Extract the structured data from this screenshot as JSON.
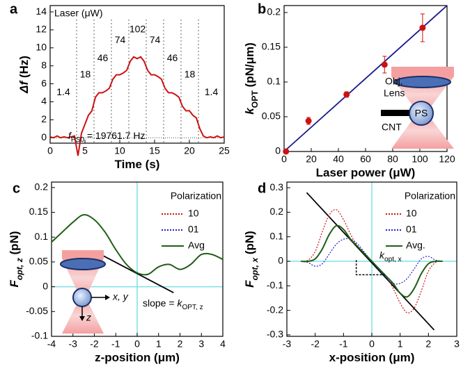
{
  "chart_data": [
    {
      "type": "line",
      "panel": "a",
      "ylabel": [
        {
          "text": "Δf",
          "italic": true
        },
        {
          "text": " (Hz)"
        }
      ],
      "xlabel": [
        {
          "text": "Time (s)"
        }
      ],
      "xlim": [
        0,
        25
      ],
      "ylim": [
        -0.6,
        14.7
      ],
      "xticks": [
        0,
        5,
        10,
        15,
        20,
        25
      ],
      "yticks": [
        0,
        2,
        4,
        6,
        8,
        10,
        12,
        14
      ],
      "x": [
        0,
        0.5,
        1,
        1.5,
        2,
        2.5,
        3,
        3.5,
        4,
        4.5,
        5,
        5.5,
        6,
        6.5,
        7,
        7.5,
        8,
        8.5,
        9,
        9.5,
        10,
        10.5,
        11,
        11.5,
        12,
        12.5,
        13,
        13.5,
        14,
        14.5,
        15,
        15.5,
        16,
        16.5,
        17,
        17.5,
        18,
        18.5,
        19,
        19.5,
        20,
        20.5,
        21,
        21.5,
        22,
        22.5,
        23,
        23.5,
        24,
        24.5,
        25
      ],
      "series": [
        {
          "color": "#cc1111",
          "values": [
            0.1,
            0,
            0.2,
            0,
            0.1,
            0,
            0.1,
            0.2,
            -2,
            0.5,
            1.5,
            2.5,
            3,
            4.5,
            5,
            5,
            5.2,
            5.5,
            6.5,
            7,
            7,
            7.2,
            7.5,
            8.5,
            9,
            8.8,
            9,
            8.5,
            7.5,
            7,
            7,
            6.8,
            6.5,
            5.5,
            5,
            5,
            4.8,
            4.5,
            3.5,
            3,
            3,
            2.5,
            2.2,
            1,
            0.2,
            0,
            0.1,
            0,
            0.2,
            0,
            0.1
          ]
        }
      ],
      "vlines": [
        3.8,
        6.3,
        8.8,
        11.3,
        13.8,
        16.3,
        18.8,
        21.3
      ],
      "legend_title": "Laser (μW)",
      "laser_labels": [
        "1.4",
        "18",
        "46",
        "74",
        "102",
        "74",
        "46",
        "18",
        "1.4"
      ],
      "annotation": [
        {
          "text": "f",
          "italic": true
        },
        {
          "text": "PS0",
          "sub": true
        },
        {
          "text": " = 19761.7 Hz"
        }
      ]
    },
    {
      "type": "errorbar",
      "panel": "b",
      "ylabel": [
        {
          "text": "k",
          "italic": true
        },
        {
          "text": "OPT",
          "sub": true
        },
        {
          "text": " (pN/μm)"
        }
      ],
      "xlabel": [
        {
          "text": "Laser power (μW)"
        }
      ],
      "xlim": [
        0,
        120
      ],
      "ylim": [
        0,
        0.21
      ],
      "xticks": [
        0,
        20,
        40,
        60,
        80,
        100,
        120
      ],
      "yticks": [
        0,
        0.05,
        0.1,
        0.15,
        0.2
      ],
      "x": [
        1.4,
        18,
        46,
        74,
        102
      ],
      "values": [
        0,
        0.044,
        0.082,
        0.125,
        0.178
      ],
      "errors": [
        0,
        0.005,
        0.004,
        0.012,
        0.02
      ],
      "color": "#cc1111",
      "fit_line": {
        "x": [
          0,
          120
        ],
        "y": [
          0,
          0.21
        ],
        "color": "#1a1a8c"
      },
      "inset_texts": [
        "Obj.",
        "Lens",
        "CNT",
        "PS"
      ]
    },
    {
      "type": "line",
      "panel": "c",
      "ylabel": [
        {
          "text": "F",
          "italic": true
        },
        {
          "text": "opt, z",
          "sub": true,
          "italic": true
        },
        {
          "text": " (pN)"
        }
      ],
      "xlabel": [
        {
          "text": "z-position (μm)"
        }
      ],
      "xlim": [
        -4,
        4
      ],
      "ylim": [
        -0.1,
        0.211
      ],
      "xticks": [
        -4,
        -3,
        -2,
        -1,
        0,
        1,
        2,
        3,
        4
      ],
      "yticks": [
        -0.1,
        -0.05,
        0,
        0.05,
        0.1,
        0.15,
        0.2
      ],
      "x": [
        -4,
        -3.5,
        -3,
        -2.5,
        -2,
        -1.5,
        -1,
        -0.5,
        0,
        0.5,
        1,
        1.5,
        2,
        2.5,
        3,
        3.5,
        4
      ],
      "series": [
        {
          "name": "Avg",
          "color": "#1e5e14",
          "dash": "solid",
          "values": [
            0.09,
            0.11,
            0.13,
            0.145,
            0.135,
            0.11,
            0.075,
            0.045,
            0.028,
            0.025,
            0.04,
            0.045,
            0.035,
            0.045,
            0.065,
            0.065,
            0.055
          ]
        }
      ],
      "legend_title": "Polarization",
      "legend_entries": [
        {
          "name": "10",
          "color": "#cc1111",
          "dash": "dotted"
        },
        {
          "name": "01",
          "color": "#2020c0",
          "dash": "dotted"
        },
        {
          "name": "Avg",
          "color": "#1e5e14",
          "dash": "solid"
        }
      ],
      "fit_line": {
        "x": [
          -1.7,
          1.7
        ],
        "y": [
          0.065,
          -0.012
        ],
        "color": "#000000"
      },
      "annotation": [
        {
          "text": "slope = "
        },
        {
          "text": "k",
          "italic": true
        },
        {
          "text": "OPT, z",
          "sub": true
        }
      ],
      "inset_texts": [
        "x, y",
        "z"
      ]
    },
    {
      "type": "line",
      "panel": "d",
      "ylabel": [
        {
          "text": "F",
          "italic": true
        },
        {
          "text": "opt, x",
          "sub": true,
          "italic": true
        },
        {
          "text": " (pN)"
        }
      ],
      "xlabel": [
        {
          "text": "x-position (μm)"
        }
      ],
      "xlim": [
        -3,
        3
      ],
      "ylim": [
        -0.306,
        0.323
      ],
      "xticks": [
        -3,
        -2,
        -1,
        0,
        1,
        2,
        3
      ],
      "yticks": [
        -0.3,
        -0.2,
        -0.1,
        0,
        0.1,
        0.2,
        0.3
      ],
      "x": [
        -2.5,
        -2.25,
        -2,
        -1.75,
        -1.5,
        -1.25,
        -1,
        -0.75,
        -0.5,
        -0.25,
        0,
        0.25,
        0.5,
        0.75,
        1,
        1.25,
        1.5,
        1.75,
        2,
        2.25,
        2.5
      ],
      "series": [
        {
          "name": "10",
          "color": "#cc1111",
          "dash": "dotted",
          "values": [
            0,
            0.005,
            0.04,
            0.12,
            0.19,
            0.21,
            0.17,
            0.11,
            0.06,
            0.03,
            0,
            -0.03,
            -0.06,
            -0.11,
            -0.17,
            -0.21,
            -0.19,
            -0.12,
            -0.04,
            -0.005,
            0
          ]
        },
        {
          "name": "01",
          "color": "#2020c0",
          "dash": "dotted",
          "values": [
            0,
            -0.005,
            -0.02,
            -0.01,
            0.03,
            0.07,
            0.09,
            0.09,
            0.07,
            0.035,
            0,
            -0.035,
            -0.07,
            -0.09,
            -0.09,
            -0.07,
            -0.03,
            0.01,
            0.02,
            0.005,
            0
          ]
        },
        {
          "name": "Avg.",
          "color": "#1e5e14",
          "dash": "solid",
          "values": [
            0,
            0,
            0.01,
            0.05,
            0.11,
            0.145,
            0.13,
            0.09,
            0.06,
            0.03,
            0,
            -0.03,
            -0.06,
            -0.09,
            -0.13,
            -0.145,
            -0.11,
            -0.05,
            -0.01,
            0,
            0
          ]
        }
      ],
      "legend_title": "Polarization",
      "fit_line": {
        "x": [
          -2.3,
          2.2
        ],
        "y": [
          0.28,
          -0.28
        ],
        "color": "#000000"
      },
      "annotation": [
        {
          "text": "k",
          "italic": true
        },
        {
          "text": "opt, x",
          "sub": true
        }
      ]
    }
  ]
}
